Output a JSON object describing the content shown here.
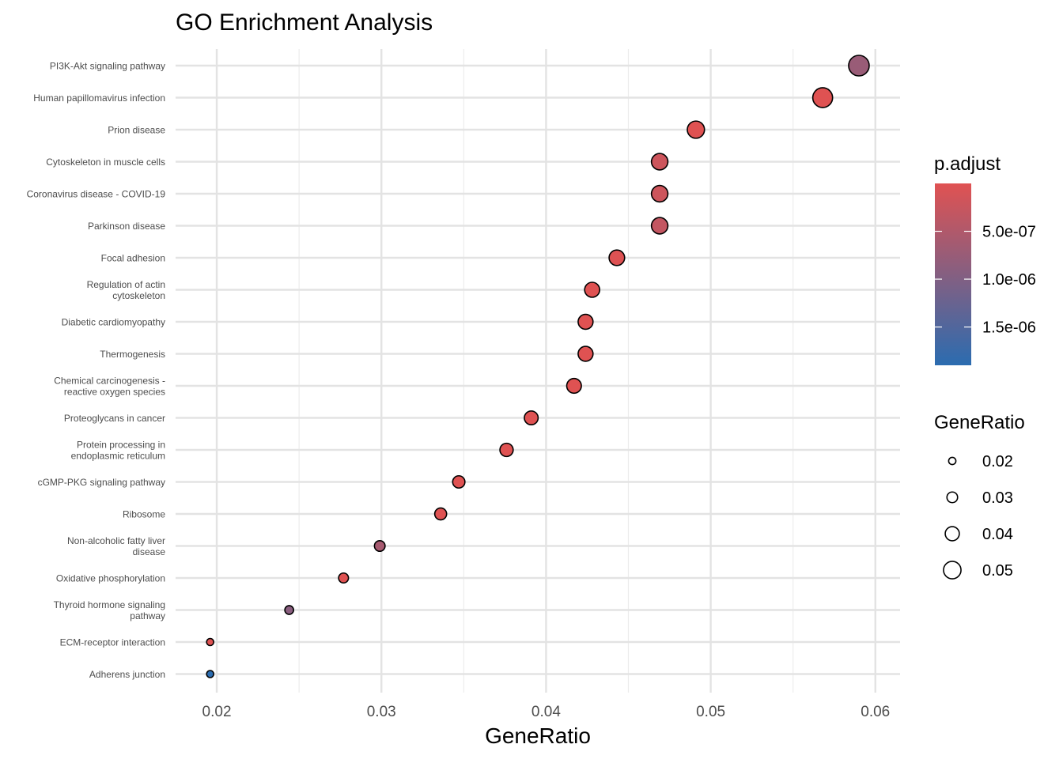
{
  "chart_data": {
    "type": "scatter",
    "title": "GO Enrichment Analysis",
    "xlabel": "GeneRatio",
    "ylabel": "",
    "xlim": [
      0.0175,
      0.0615
    ],
    "xticks": [
      0.02,
      0.03,
      0.04,
      0.05,
      0.06
    ],
    "xtick_labels": [
      "0.02",
      "0.03",
      "0.04",
      "0.05",
      "0.06"
    ],
    "grid": true,
    "categories": [
      [
        "PI3K-Akt signaling pathway"
      ],
      [
        "Human papillomavirus infection"
      ],
      [
        "Prion disease"
      ],
      [
        "Cytoskeleton in muscle cells"
      ],
      [
        "Coronavirus disease - COVID-19"
      ],
      [
        "Parkinson disease"
      ],
      [
        "Focal adhesion"
      ],
      [
        "Regulation of actin",
        "cytoskeleton"
      ],
      [
        "Diabetic cardiomyopathy"
      ],
      [
        "Thermogenesis"
      ],
      [
        "Chemical carcinogenesis -",
        "reactive oxygen species"
      ],
      [
        "Proteoglycans in cancer"
      ],
      [
        "Protein processing in",
        "endoplasmic reticulum"
      ],
      [
        "cGMP-PKG signaling pathway"
      ],
      [
        "Ribosome"
      ],
      [
        "Non-alcoholic fatty liver",
        "disease"
      ],
      [
        "Oxidative phosphorylation"
      ],
      [
        "Thyroid hormone signaling",
        "pathway"
      ],
      [
        "ECM-receptor interaction"
      ],
      [
        "Adherens junction"
      ]
    ],
    "gene_ratio": [
      0.059,
      0.0568,
      0.0491,
      0.0469,
      0.0469,
      0.0469,
      0.0443,
      0.0428,
      0.0424,
      0.0424,
      0.0417,
      0.0391,
      0.0376,
      0.0347,
      0.0336,
      0.0299,
      0.0277,
      0.0244,
      0.0196,
      0.0196
    ],
    "p_adjust": [
      7.5e-07,
      1e-08,
      1e-08,
      2e-07,
      2e-07,
      3e-07,
      2e-08,
      1e-08,
      1e-08,
      1e-08,
      1e-08,
      1e-08,
      1e-08,
      1e-08,
      1e-08,
      6e-07,
      1e-08,
      9e-07,
      1e-08,
      1.9e-06
    ],
    "legend_placement": "right",
    "color_legend": {
      "title": "p.adjust",
      "range": [
        0,
        1.9e-06
      ],
      "low_color": "#e05252",
      "high_color": "#2b6cb0",
      "ticks": [
        5e-07,
        1e-06,
        1.5e-06
      ],
      "tick_labels": [
        "5.0e-07",
        "1.0e-06",
        "1.5e-06"
      ]
    },
    "size_legend": {
      "title": "GeneRatio",
      "values": [
        0.02,
        0.03,
        0.04,
        0.05
      ],
      "labels": [
        "0.02",
        "0.03",
        "0.04",
        "0.05"
      ]
    }
  }
}
